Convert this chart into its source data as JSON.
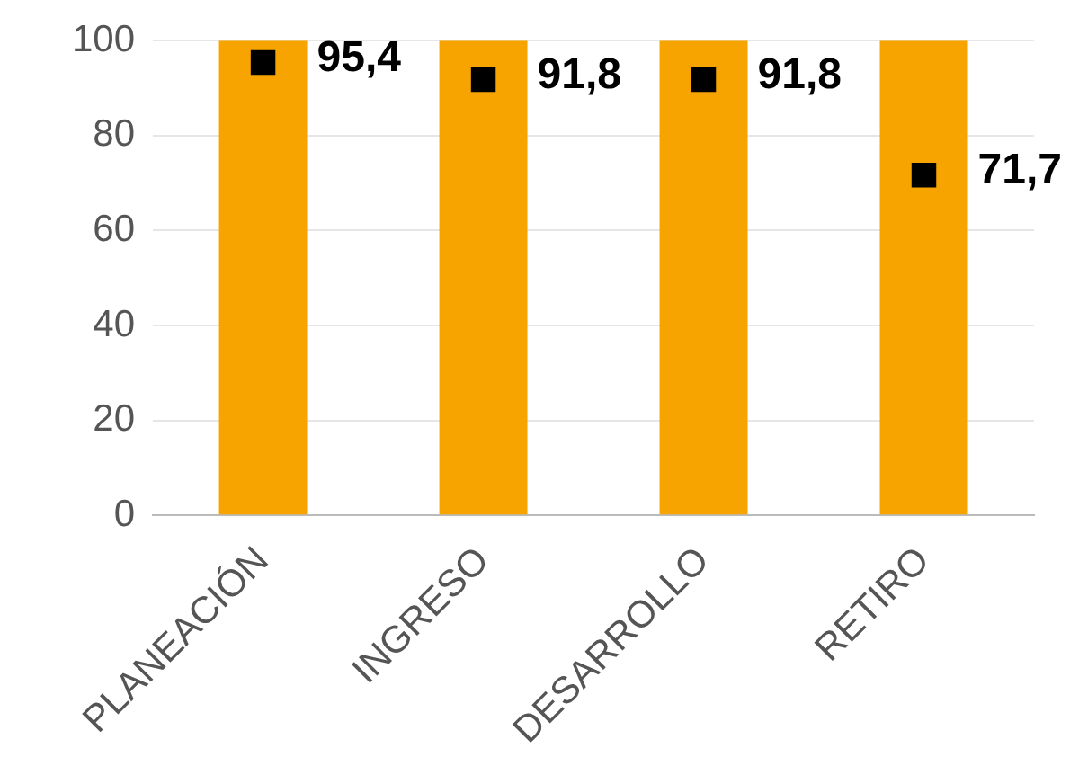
{
  "chart_data": {
    "type": "bar",
    "categories": [
      "PLANEACIÓN",
      "INGRESO",
      "DESARROLLO",
      "RETIRO"
    ],
    "series": [
      {
        "color": "#f7a400",
        "values": [
          100,
          100,
          100,
          100
        ]
      },
      {
        "type": "scatter",
        "color": "#000000",
        "x": [
          "PLANEACIÓN",
          "INGRESO",
          "DESARROLLO",
          "RETIRO"
        ],
        "values": [
          95.4,
          91.8,
          91.8,
          71.7
        ],
        "value_labels": [
          "95,4",
          "91,8",
          "91,8",
          "71,7"
        ],
        "marker": "square"
      }
    ],
    "ylim": [
      0,
      100
    ],
    "yticks": [
      0,
      20,
      40,
      60,
      80,
      100
    ],
    "grid": "y",
    "legend": false
  }
}
